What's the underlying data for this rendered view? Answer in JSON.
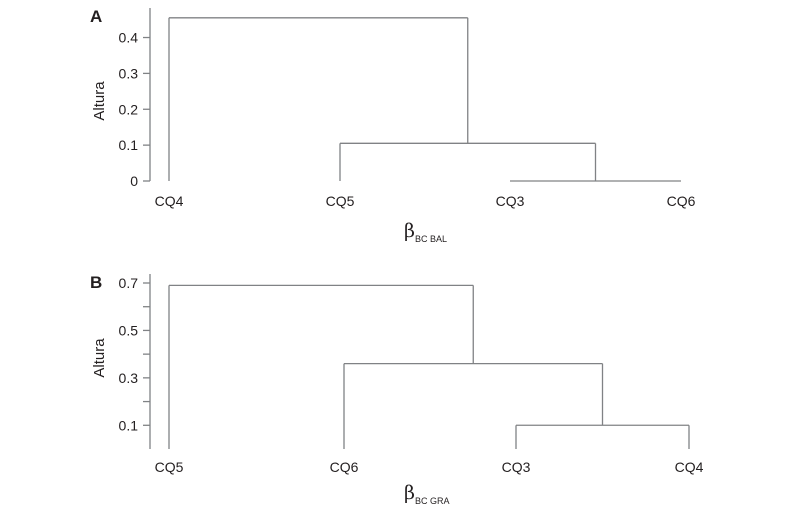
{
  "chart_data": [
    {
      "type": "dendrogram",
      "panel_label": "A",
      "ylabel": "Altura",
      "xlabel": {
        "symbol": "β",
        "subscript": "BC BAL"
      },
      "yticks": [
        0,
        0.1,
        0.2,
        0.3,
        0.4
      ],
      "ytick_labels": [
        "0",
        "0.1",
        "0.2",
        "0.3",
        "0.4"
      ],
      "ylim": [
        0,
        0.46
      ],
      "leaves": [
        "CQ4",
        "CQ5",
        "CQ3",
        "CQ6"
      ],
      "merges": [
        {
          "children": [
            "CQ3",
            "CQ6"
          ],
          "height": 0.0
        },
        {
          "children": [
            "CQ5",
            "(CQ3,CQ6)"
          ],
          "height": 0.105
        },
        {
          "children": [
            "CQ4",
            "(CQ5,(CQ3,CQ6))"
          ],
          "height": 0.455
        }
      ]
    },
    {
      "type": "dendrogram",
      "panel_label": "B",
      "ylabel": "Altura",
      "xlabel": {
        "symbol": "β",
        "subscript": "BC GRA"
      },
      "yticks": [
        0.1,
        0.2,
        0.3,
        0.4,
        0.5,
        0.6,
        0.7
      ],
      "ytick_labels": [
        "0.1",
        "",
        "0.3",
        "",
        "0.5",
        "",
        "0.7"
      ],
      "ylim": [
        0,
        0.7
      ],
      "leaves": [
        "CQ5",
        "CQ6",
        "CQ3",
        "CQ4"
      ],
      "merges": [
        {
          "children": [
            "CQ3",
            "CQ4"
          ],
          "height": 0.1
        },
        {
          "children": [
            "CQ6",
            "(CQ3,CQ4)"
          ],
          "height": 0.36
        },
        {
          "children": [
            "CQ5",
            "(CQ6,(CQ3,CQ4))"
          ],
          "height": 0.69
        }
      ]
    }
  ]
}
